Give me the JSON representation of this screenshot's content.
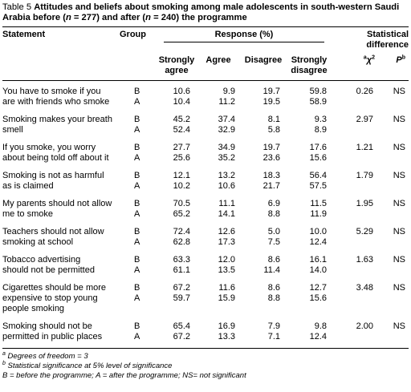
{
  "title": {
    "label": "Table 5",
    "parts": [
      "Attitudes and beliefs about smoking among male adolescents in south-western Saudi Arabia before (",
      "n",
      " = 277) and after (",
      "n",
      " = 240) the programme"
    ]
  },
  "header": {
    "statement": "Statement",
    "group": "Group",
    "response": "Response (%)",
    "strongly_agree": "Strongly agree",
    "agree": "Agree",
    "disagree": "Disagree",
    "strongly_disagree": "Strongly disagree",
    "stat": "Statistical difference",
    "chi_sup": "a",
    "chi": "χ",
    "chi_pow": "2",
    "p": "P",
    "p_sup": "b"
  },
  "table": {
    "rows": [
      {
        "statement": [
          "You have to smoke if you",
          "are with friends who smoke"
        ],
        "groups": [
          {
            "group": "B",
            "values": [
              "10.6",
              "9.9",
              "19.7",
              "59.8"
            ]
          },
          {
            "group": "A",
            "values": [
              "10.4",
              "11.2",
              "19.5",
              "58.9"
            ]
          }
        ],
        "chi2": "0.26",
        "p": "NS"
      },
      {
        "statement": [
          "Smoking makes your breath",
          "smell"
        ],
        "groups": [
          {
            "group": "B",
            "values": [
              "45.2",
              "37.4",
              "8.1",
              "9.3"
            ]
          },
          {
            "group": "A",
            "values": [
              "52.4",
              "32.9",
              "5.8",
              "8.9"
            ]
          }
        ],
        "chi2": "2.97",
        "p": "NS"
      },
      {
        "statement": [
          "If you smoke, you worry",
          "about being told off about it"
        ],
        "groups": [
          {
            "group": "B",
            "values": [
              "27.7",
              "34.9",
              "19.7",
              "17.6"
            ]
          },
          {
            "group": "A",
            "values": [
              "25.6",
              "35.2",
              "23.6",
              "15.6"
            ]
          }
        ],
        "chi2": "1.21",
        "p": "NS"
      },
      {
        "statement": [
          "Smoking is not as harmful",
          "as is claimed"
        ],
        "groups": [
          {
            "group": "B",
            "values": [
              "12.1",
              "13.2",
              "18.3",
              "56.4"
            ]
          },
          {
            "group": "A",
            "values": [
              "10.2",
              "10.6",
              "21.7",
              "57.5"
            ]
          }
        ],
        "chi2": "1.79",
        "p": "NS"
      },
      {
        "statement": [
          "My parents should not allow",
          "me to smoke"
        ],
        "groups": [
          {
            "group": "B",
            "values": [
              "70.5",
              "11.1",
              "6.9",
              "11.5"
            ]
          },
          {
            "group": "A",
            "values": [
              "65.2",
              "14.1",
              "8.8",
              "11.9"
            ]
          }
        ],
        "chi2": "1.95",
        "p": "NS"
      },
      {
        "statement": [
          "Teachers should not allow",
          "smoking at school"
        ],
        "groups": [
          {
            "group": "B",
            "values": [
              "72.4",
              "12.6",
              "5.0",
              "10.0"
            ]
          },
          {
            "group": "A",
            "values": [
              "62.8",
              "17.3",
              "7.5",
              "12.4"
            ]
          }
        ],
        "chi2": "5.29",
        "p": "NS"
      },
      {
        "statement": [
          "Tobacco advertising",
          "should not be permitted"
        ],
        "groups": [
          {
            "group": "B",
            "values": [
              "63.3",
              "12.0",
              "8.6",
              "16.1"
            ]
          },
          {
            "group": "A",
            "values": [
              "61.1",
              "13.5",
              "11.4",
              "14.0"
            ]
          }
        ],
        "chi2": "1.63",
        "p": "NS"
      },
      {
        "statement": [
          "Cigarettes should be more",
          "expensive to stop young",
          "people smoking"
        ],
        "groups": [
          {
            "group": "B",
            "values": [
              "67.2",
              "11.6",
              "8.6",
              "12.7"
            ]
          },
          {
            "group": "A",
            "values": [
              "59.7",
              "15.9",
              "8.8",
              "15.6"
            ]
          }
        ],
        "chi2": "3.48",
        "p": "NS"
      },
      {
        "statement": [
          "Smoking should not be",
          "permitted in public places"
        ],
        "groups": [
          {
            "group": "B",
            "values": [
              "65.4",
              "16.9",
              "7.9",
              "9.8"
            ]
          },
          {
            "group": "A",
            "values": [
              "67.2",
              "13.3",
              "7.1",
              "12.4"
            ]
          }
        ],
        "chi2": "2.00",
        "p": "NS"
      }
    ]
  },
  "footnotes": [
    {
      "mark": "a",
      "text": " Degrees of freedom = 3"
    },
    {
      "mark": "b",
      "text": " Statistical significance at 5% level of significance"
    },
    {
      "text": "B = before the programme; A = after the programme; NS= not significant"
    }
  ]
}
